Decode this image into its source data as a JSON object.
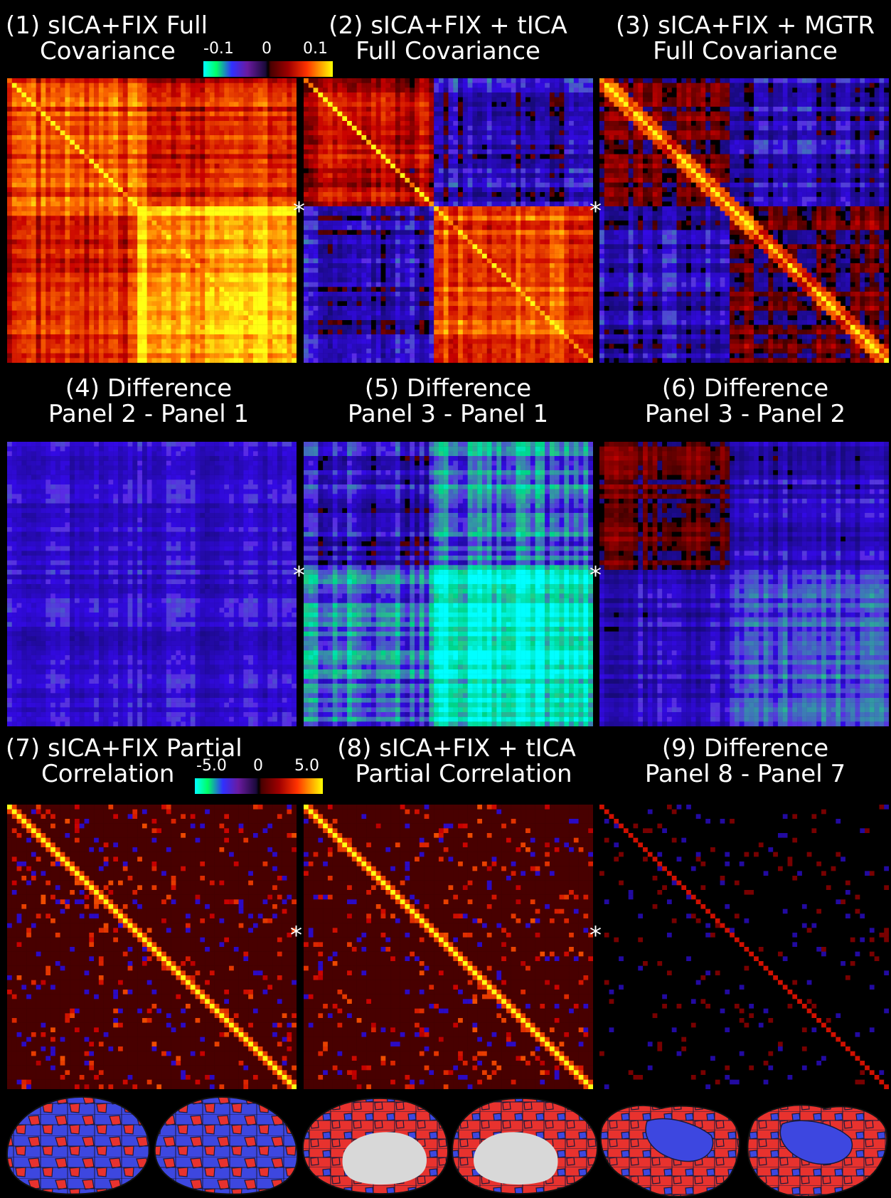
{
  "panels": [
    {
      "title": [
        "(1) sICA+FIX Full",
        "Covariance"
      ],
      "style": "full1"
    },
    {
      "title": [
        "(2) sICA+FIX + tICA",
        "Full Covariance"
      ],
      "style": "full2"
    },
    {
      "title": [
        "(3) sICA+FIX + MGTR",
        "Full Covariance"
      ],
      "style": "full3"
    },
    {
      "title": [
        "(4) Difference",
        "Panel 2 - Panel 1"
      ],
      "style": "diff4"
    },
    {
      "title": [
        "(5) Difference",
        "Panel 3 - Panel 1"
      ],
      "style": "diff5"
    },
    {
      "title": [
        "(6) Difference",
        "Panel 3 - Panel 2"
      ],
      "style": "diff6"
    },
    {
      "title": [
        "(7) sICA+FIX Partial",
        "Correlation"
      ],
      "style": "partial"
    },
    {
      "title": [
        "(8) sICA+FIX + tICA",
        "Partial Correlation"
      ],
      "style": "partial"
    },
    {
      "title": [
        "(9) Difference",
        "Panel 8 - Panel 7"
      ],
      "style": "diff9"
    }
  ],
  "colorbar_cov": {
    "min": "-0.1",
    "mid": "0",
    "max": "0.1"
  },
  "colorbar_pc": {
    "min": "-5.0",
    "mid": "0",
    "max": "5.0"
  },
  "star_marker": "*",
  "colors": {
    "positive_parcel": "#e8322e",
    "negative_parcel": "#3d47e0",
    "medial_wall": "#d8d8d8",
    "background": "#000000"
  }
}
